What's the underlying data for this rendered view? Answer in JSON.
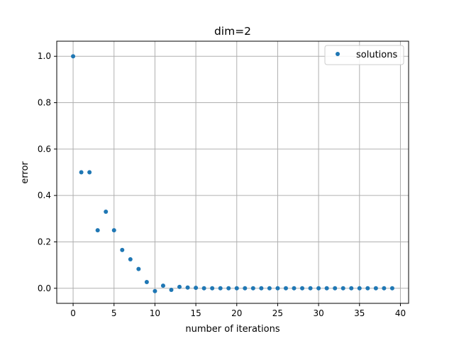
{
  "chart_data": {
    "type": "scatter",
    "title": "dim=2",
    "xlabel": "number of iterations",
    "ylabel": "error",
    "xlim": [
      -2,
      41
    ],
    "ylim": [
      -0.065,
      1.065
    ],
    "xticks": [
      0,
      5,
      10,
      15,
      20,
      25,
      30,
      35,
      40
    ],
    "yticks": [
      0.0,
      0.2,
      0.4,
      0.6,
      0.8,
      1.0
    ],
    "xtick_labels": [
      "0",
      "5",
      "10",
      "15",
      "20",
      "25",
      "30",
      "35",
      "40"
    ],
    "ytick_labels": [
      "0.0",
      "0.2",
      "0.4",
      "0.6",
      "0.8",
      "1.0"
    ],
    "grid": true,
    "legend_position": "top-right",
    "series": [
      {
        "name": "solutions",
        "color": "#1f77b4",
        "x": [
          0,
          1,
          2,
          3,
          4,
          5,
          6,
          7,
          8,
          9,
          10,
          11,
          12,
          13,
          14,
          15,
          16,
          17,
          18,
          19,
          20,
          21,
          22,
          23,
          24,
          25,
          26,
          27,
          28,
          29,
          30,
          31,
          32,
          33,
          34,
          35,
          36,
          37,
          38,
          39
        ],
        "y": [
          1.0,
          0.5,
          0.5,
          0.25,
          0.33,
          0.25,
          0.165,
          0.125,
          0.083,
          0.027,
          -0.012,
          0.011,
          -0.007,
          0.006,
          0.003,
          0.002,
          0.0,
          0.0,
          0.0,
          0.0,
          0.0,
          0.0,
          0.0,
          0.0,
          0.0,
          0.0,
          0.0,
          0.0,
          0.0,
          0.0,
          0.0,
          0.0,
          0.0,
          0.0,
          0.0,
          0.0,
          0.0,
          0.0,
          0.0,
          0.0
        ]
      }
    ]
  }
}
